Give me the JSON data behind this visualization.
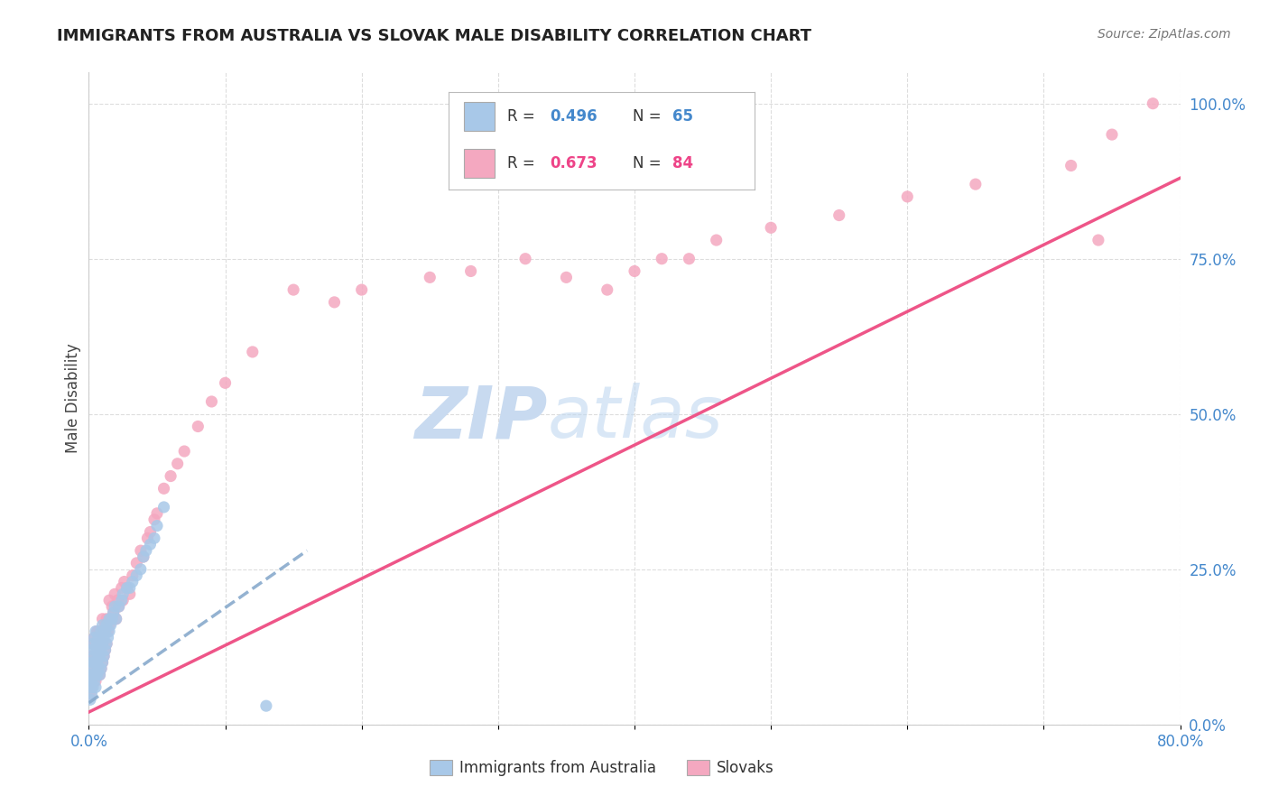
{
  "title": "IMMIGRANTS FROM AUSTRALIA VS SLOVAK MALE DISABILITY CORRELATION CHART",
  "source": "Source: ZipAtlas.com",
  "ylabel": "Male Disability",
  "x_tick_positions": [
    0.0,
    0.1,
    0.2,
    0.3,
    0.4,
    0.5,
    0.6,
    0.7,
    0.8
  ],
  "x_tick_labels": [
    "0.0%",
    "",
    "",
    "",
    "",
    "",
    "",
    "",
    "80.0%"
  ],
  "y_ticks_right_vals": [
    0.0,
    0.25,
    0.5,
    0.75,
    1.0
  ],
  "y_ticks_right_labels": [
    "0.0%",
    "25.0%",
    "50.0%",
    "75.0%",
    "100.0%"
  ],
  "R_australia": 0.496,
  "N_australia": 65,
  "R_slovak": 0.673,
  "N_slovak": 84,
  "color_australia": "#a8c8e8",
  "color_slovak": "#f4a8c0",
  "color_blue_text": "#4488cc",
  "color_pink_text": "#ee4488",
  "line_australia_color": "#88aacc",
  "line_slovak_color": "#ee5588",
  "watermark_color": "#c8daf0",
  "background_color": "#ffffff",
  "grid_color": "#dddddd",
  "aus_line_x0": 0.0,
  "aus_line_x1": 0.16,
  "aus_line_y0": 0.035,
  "aus_line_y1": 0.28,
  "slo_line_x0": 0.0,
  "slo_line_x1": 0.8,
  "slo_line_y0": 0.02,
  "slo_line_y1": 0.88,
  "aus_scatter_x": [
    0.001,
    0.001,
    0.001,
    0.002,
    0.002,
    0.002,
    0.002,
    0.002,
    0.003,
    0.003,
    0.003,
    0.003,
    0.004,
    0.004,
    0.004,
    0.004,
    0.005,
    0.005,
    0.005,
    0.005,
    0.005,
    0.006,
    0.006,
    0.006,
    0.007,
    0.007,
    0.007,
    0.008,
    0.008,
    0.008,
    0.009,
    0.009,
    0.009,
    0.01,
    0.01,
    0.01,
    0.011,
    0.011,
    0.012,
    0.012,
    0.013,
    0.013,
    0.014,
    0.015,
    0.015,
    0.016,
    0.017,
    0.018,
    0.019,
    0.02,
    0.022,
    0.024,
    0.025,
    0.028,
    0.03,
    0.032,
    0.035,
    0.038,
    0.04,
    0.042,
    0.045,
    0.048,
    0.05,
    0.055,
    0.13
  ],
  "aus_scatter_y": [
    0.04,
    0.06,
    0.08,
    0.05,
    0.07,
    0.08,
    0.1,
    0.12,
    0.06,
    0.08,
    0.1,
    0.13,
    0.07,
    0.09,
    0.11,
    0.14,
    0.06,
    0.08,
    0.1,
    0.12,
    0.15,
    0.08,
    0.1,
    0.13,
    0.09,
    0.11,
    0.14,
    0.08,
    0.11,
    0.13,
    0.09,
    0.12,
    0.15,
    0.1,
    0.13,
    0.16,
    0.11,
    0.14,
    0.12,
    0.15,
    0.13,
    0.16,
    0.14,
    0.15,
    0.17,
    0.16,
    0.17,
    0.18,
    0.19,
    0.17,
    0.19,
    0.2,
    0.21,
    0.22,
    0.22,
    0.23,
    0.24,
    0.25,
    0.27,
    0.28,
    0.29,
    0.3,
    0.32,
    0.35,
    0.03
  ],
  "slo_scatter_x": [
    0.001,
    0.001,
    0.002,
    0.002,
    0.002,
    0.003,
    0.003,
    0.003,
    0.004,
    0.004,
    0.004,
    0.005,
    0.005,
    0.005,
    0.006,
    0.006,
    0.006,
    0.007,
    0.007,
    0.007,
    0.008,
    0.008,
    0.009,
    0.009,
    0.01,
    0.01,
    0.01,
    0.011,
    0.011,
    0.012,
    0.012,
    0.013,
    0.013,
    0.014,
    0.015,
    0.015,
    0.016,
    0.017,
    0.018,
    0.019,
    0.02,
    0.021,
    0.022,
    0.024,
    0.025,
    0.026,
    0.028,
    0.03,
    0.032,
    0.035,
    0.038,
    0.04,
    0.043,
    0.045,
    0.048,
    0.05,
    0.055,
    0.06,
    0.065,
    0.07,
    0.08,
    0.09,
    0.1,
    0.12,
    0.15,
    0.18,
    0.2,
    0.25,
    0.28,
    0.32,
    0.35,
    0.38,
    0.4,
    0.42,
    0.44,
    0.46,
    0.5,
    0.55,
    0.6,
    0.65,
    0.72,
    0.74,
    0.75,
    0.78
  ],
  "slo_scatter_y": [
    0.05,
    0.07,
    0.06,
    0.09,
    0.11,
    0.07,
    0.1,
    0.13,
    0.08,
    0.11,
    0.14,
    0.07,
    0.1,
    0.13,
    0.08,
    0.11,
    0.15,
    0.09,
    0.12,
    0.15,
    0.08,
    0.13,
    0.09,
    0.14,
    0.1,
    0.13,
    0.17,
    0.11,
    0.15,
    0.12,
    0.16,
    0.13,
    0.17,
    0.15,
    0.16,
    0.2,
    0.17,
    0.19,
    0.18,
    0.21,
    0.17,
    0.2,
    0.19,
    0.22,
    0.2,
    0.23,
    0.22,
    0.21,
    0.24,
    0.26,
    0.28,
    0.27,
    0.3,
    0.31,
    0.33,
    0.34,
    0.38,
    0.4,
    0.42,
    0.44,
    0.48,
    0.52,
    0.55,
    0.6,
    0.7,
    0.68,
    0.7,
    0.72,
    0.73,
    0.75,
    0.72,
    0.7,
    0.73,
    0.75,
    0.75,
    0.78,
    0.8,
    0.82,
    0.85,
    0.87,
    0.9,
    0.78,
    0.95,
    1.0
  ]
}
